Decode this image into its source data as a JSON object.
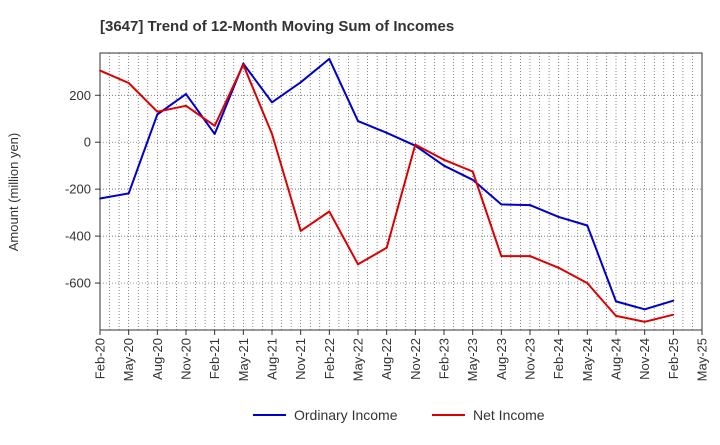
{
  "chart_data": {
    "type": "line",
    "title": "[3647]  Trend of 12-Month Moving Sum of Incomes",
    "xlabel": "",
    "ylabel": "Amount (million yen)",
    "ylim": [
      -800,
      380
    ],
    "yticks": [
      -600,
      -400,
      -200,
      0,
      200
    ],
    "grid": true,
    "legend": "bottom",
    "categories": [
      "Feb-20",
      "May-20",
      "Aug-20",
      "Nov-20",
      "Feb-21",
      "May-21",
      "Aug-21",
      "Nov-21",
      "Feb-22",
      "May-22",
      "Aug-22",
      "Nov-22",
      "Feb-23",
      "May-23",
      "Aug-23",
      "Nov-23",
      "Feb-24",
      "May-24",
      "Aug-24",
      "Nov-24",
      "Feb-25",
      "May-25"
    ],
    "series": [
      {
        "name": "Ordinary Income",
        "color": "#0000cc",
        "values": [
          -240,
          -218,
          118,
          205,
          35,
          335,
          170,
          255,
          355,
          90,
          40,
          -15,
          -100,
          -160,
          -265,
          -268,
          -318,
          -355,
          -678,
          -712,
          -675,
          null
        ]
      },
      {
        "name": "Net Income",
        "color": "#dd0000",
        "values": [
          305,
          252,
          130,
          155,
          70,
          330,
          35,
          -378,
          -295,
          -520,
          -450,
          -10,
          -75,
          -125,
          -485,
          -485,
          -535,
          -600,
          -740,
          -765,
          -735,
          null
        ]
      }
    ]
  }
}
